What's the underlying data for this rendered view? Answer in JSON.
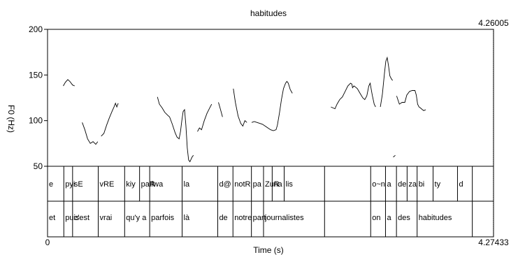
{
  "chart_data": {
    "type": "line",
    "title": "habitudes",
    "xlabel": "Time (s)",
    "ylabel": "F0 (Hz)",
    "xlim": [
      0,
      4.27433
    ],
    "ylim": [
      50,
      200
    ],
    "x_tick_labels": [
      "0",
      "4.27433"
    ],
    "y_ticks": [
      50,
      100,
      150,
      200
    ],
    "cursor": {
      "x": 4.26005,
      "label": "4.26005"
    },
    "series": [
      {
        "segments": [
          [
            [
              0.151,
              138
            ],
            [
              0.171,
              142
            ],
            [
              0.194,
              145
            ],
            [
              0.214,
              143
            ],
            [
              0.24,
              139
            ],
            [
              0.26,
              138
            ]
          ],
          [
            [
              0.332,
              98
            ],
            [
              0.358,
              90
            ],
            [
              0.384,
              80
            ],
            [
              0.41,
              75
            ],
            [
              0.436,
              77
            ],
            [
              0.462,
              74
            ],
            [
              0.481,
              77
            ]
          ],
          [
            [
              0.514,
              83
            ],
            [
              0.54,
              86
            ],
            [
              0.566,
              95
            ],
            [
              0.592,
              103
            ],
            [
              0.618,
              110
            ],
            [
              0.637,
              115
            ],
            [
              0.651,
              119
            ],
            [
              0.664,
              115
            ],
            [
              0.677,
              119
            ]
          ],
          [
            [
              1.053,
              126
            ],
            [
              1.072,
              118
            ],
            [
              1.098,
              114
            ],
            [
              1.124,
              109
            ],
            [
              1.15,
              106
            ],
            [
              1.17,
              104
            ],
            [
              1.196,
              96
            ],
            [
              1.222,
              87
            ],
            [
              1.241,
              82
            ],
            [
              1.261,
              80
            ],
            [
              1.274,
              88
            ],
            [
              1.287,
              100
            ],
            [
              1.3,
              110
            ],
            [
              1.313,
              112
            ],
            [
              1.326,
              95
            ],
            [
              1.339,
              70
            ],
            [
              1.352,
              57
            ],
            [
              1.365,
              55
            ],
            [
              1.385,
              60
            ],
            [
              1.398,
              62
            ]
          ],
          [
            [
              1.437,
              88
            ],
            [
              1.456,
              92
            ],
            [
              1.476,
              90
            ],
            [
              1.502,
              100
            ],
            [
              1.528,
              108
            ],
            [
              1.554,
              114
            ],
            [
              1.573,
              118
            ]
          ],
          [
            [
              1.638,
              120
            ],
            [
              1.658,
              112
            ],
            [
              1.677,
              104
            ]
          ],
          [
            [
              1.781,
              135
            ],
            [
              1.8,
              120
            ],
            [
              1.826,
              105
            ],
            [
              1.852,
              97
            ],
            [
              1.872,
              94
            ],
            [
              1.891,
              100
            ],
            [
              1.911,
              98
            ]
          ],
          [
            [
              1.956,
              98
            ],
            [
              1.982,
              99
            ],
            [
              2.008,
              98
            ],
            [
              2.034,
              97
            ],
            [
              2.06,
              96
            ],
            [
              2.086,
              94
            ],
            [
              2.112,
              92
            ],
            [
              2.138,
              90
            ],
            [
              2.164,
              89
            ],
            [
              2.19,
              90
            ],
            [
              2.203,
              95
            ],
            [
              2.222,
              108
            ],
            [
              2.242,
              123
            ],
            [
              2.261,
              135
            ],
            [
              2.281,
              141
            ],
            [
              2.294,
              143
            ],
            [
              2.307,
              141
            ],
            [
              2.326,
              134
            ],
            [
              2.346,
              130
            ]
          ],
          [
            [
              2.716,
              115
            ],
            [
              2.735,
              114
            ],
            [
              2.755,
              113
            ],
            [
              2.774,
              118
            ],
            [
              2.8,
              123
            ],
            [
              2.826,
              126
            ],
            [
              2.852,
              132
            ],
            [
              2.878,
              138
            ],
            [
              2.904,
              141
            ],
            [
              2.917,
              140
            ],
            [
              2.923,
              136
            ],
            [
              2.936,
              138
            ],
            [
              2.949,
              137
            ],
            [
              2.969,
              135
            ],
            [
              2.995,
              130
            ],
            [
              3.021,
              125
            ],
            [
              3.04,
              123
            ],
            [
              3.06,
              127
            ],
            [
              3.079,
              138
            ],
            [
              3.092,
              141
            ],
            [
              3.112,
              128
            ],
            [
              3.131,
              118
            ],
            [
              3.144,
              115
            ]
          ],
          [
            [
              3.19,
              115
            ],
            [
              3.209,
              129
            ],
            [
              3.229,
              152
            ],
            [
              3.242,
              165
            ],
            [
              3.255,
              169
            ],
            [
              3.268,
              160
            ],
            [
              3.281,
              149
            ],
            [
              3.294,
              146
            ],
            [
              3.307,
              144
            ]
          ],
          [
            [
              3.346,
              127
            ],
            [
              3.372,
              118
            ],
            [
              3.398,
              120
            ],
            [
              3.424,
              120
            ],
            [
              3.443,
              128
            ],
            [
              3.469,
              132
            ],
            [
              3.495,
              133
            ],
            [
              3.521,
              133
            ],
            [
              3.534,
              128
            ],
            [
              3.547,
              118
            ],
            [
              3.56,
              115
            ],
            [
              3.573,
              114
            ],
            [
              3.593,
              112
            ],
            [
              3.606,
              111
            ],
            [
              3.625,
              112
            ]
          ],
          [
            [
              3.313,
              60
            ],
            [
              3.333,
              62
            ]
          ]
        ]
      }
    ],
    "tiers": [
      {
        "name": "phones",
        "labels": [
          {
            "x0": 0.0,
            "x1": 0.156,
            "text": "e"
          },
          {
            "x0": 0.156,
            "x1": 0.24,
            "text": "pyi"
          },
          {
            "x0": 0.24,
            "x1": 0.486,
            "text": "sE"
          },
          {
            "x0": 0.486,
            "x1": 0.739,
            "text": "vRE"
          },
          {
            "x0": 0.739,
            "x1": 0.882,
            "text": "kiy"
          },
          {
            "x0": 0.882,
            "x1": 0.979,
            "text": "paR"
          },
          {
            "x0": 0.979,
            "x1": 1.29,
            "text": "fwa"
          },
          {
            "x0": 1.29,
            "x1": 1.631,
            "text": "la"
          },
          {
            "x0": 1.631,
            "x1": 1.777,
            "text": "d@"
          },
          {
            "x0": 1.777,
            "x1": 1.954,
            "text": "notR"
          },
          {
            "x0": 1.954,
            "x1": 2.07,
            "text": "pa"
          },
          {
            "x0": 2.07,
            "x1": 2.153,
            "text": "ZuR"
          },
          {
            "x0": 2.153,
            "x1": 2.268,
            "text": "na"
          },
          {
            "x0": 2.268,
            "x1": 2.655,
            "text": "lis"
          },
          {
            "x0": 2.655,
            "x1": 3.097,
            "text": ""
          },
          {
            "x0": 3.097,
            "x1": 3.239,
            "text": "o~n"
          },
          {
            "x0": 3.239,
            "x1": 3.344,
            "text": "a"
          },
          {
            "x0": 3.344,
            "x1": 3.446,
            "text": "de"
          },
          {
            "x0": 3.446,
            "x1": 3.542,
            "text": "za"
          },
          {
            "x0": 3.542,
            "x1": 3.695,
            "text": "bi"
          },
          {
            "x0": 3.695,
            "x1": 3.929,
            "text": "ty"
          },
          {
            "x0": 3.929,
            "x1": 4.071,
            "text": "d"
          },
          {
            "x0": 4.071,
            "x1": 4.274,
            "text": ""
          }
        ]
      },
      {
        "name": "words",
        "labels": [
          {
            "x0": 0.0,
            "x1": 0.156,
            "text": "et"
          },
          {
            "x0": 0.156,
            "x1": 0.24,
            "text": "puis"
          },
          {
            "x0": 0.24,
            "x1": 0.486,
            "text": "c'est"
          },
          {
            "x0": 0.486,
            "x1": 0.739,
            "text": "vrai"
          },
          {
            "x0": 0.739,
            "x1": 0.979,
            "text": "qu'y a"
          },
          {
            "x0": 0.979,
            "x1": 1.29,
            "text": "parfois"
          },
          {
            "x0": 1.29,
            "x1": 1.631,
            "text": "là"
          },
          {
            "x0": 1.631,
            "x1": 1.777,
            "text": "de"
          },
          {
            "x0": 1.777,
            "x1": 1.954,
            "text": "notre"
          },
          {
            "x0": 1.954,
            "x1": 2.07,
            "text": "part"
          },
          {
            "x0": 2.07,
            "x1": 2.655,
            "text": "journalistes"
          },
          {
            "x0": 2.655,
            "x1": 3.097,
            "text": ""
          },
          {
            "x0": 3.097,
            "x1": 3.239,
            "text": "on"
          },
          {
            "x0": 3.239,
            "x1": 3.344,
            "text": "a"
          },
          {
            "x0": 3.344,
            "x1": 3.542,
            "text": "des"
          },
          {
            "x0": 3.542,
            "x1": 4.071,
            "text": "habitudes"
          },
          {
            "x0": 4.071,
            "x1": 4.274,
            "text": ""
          }
        ]
      }
    ]
  }
}
